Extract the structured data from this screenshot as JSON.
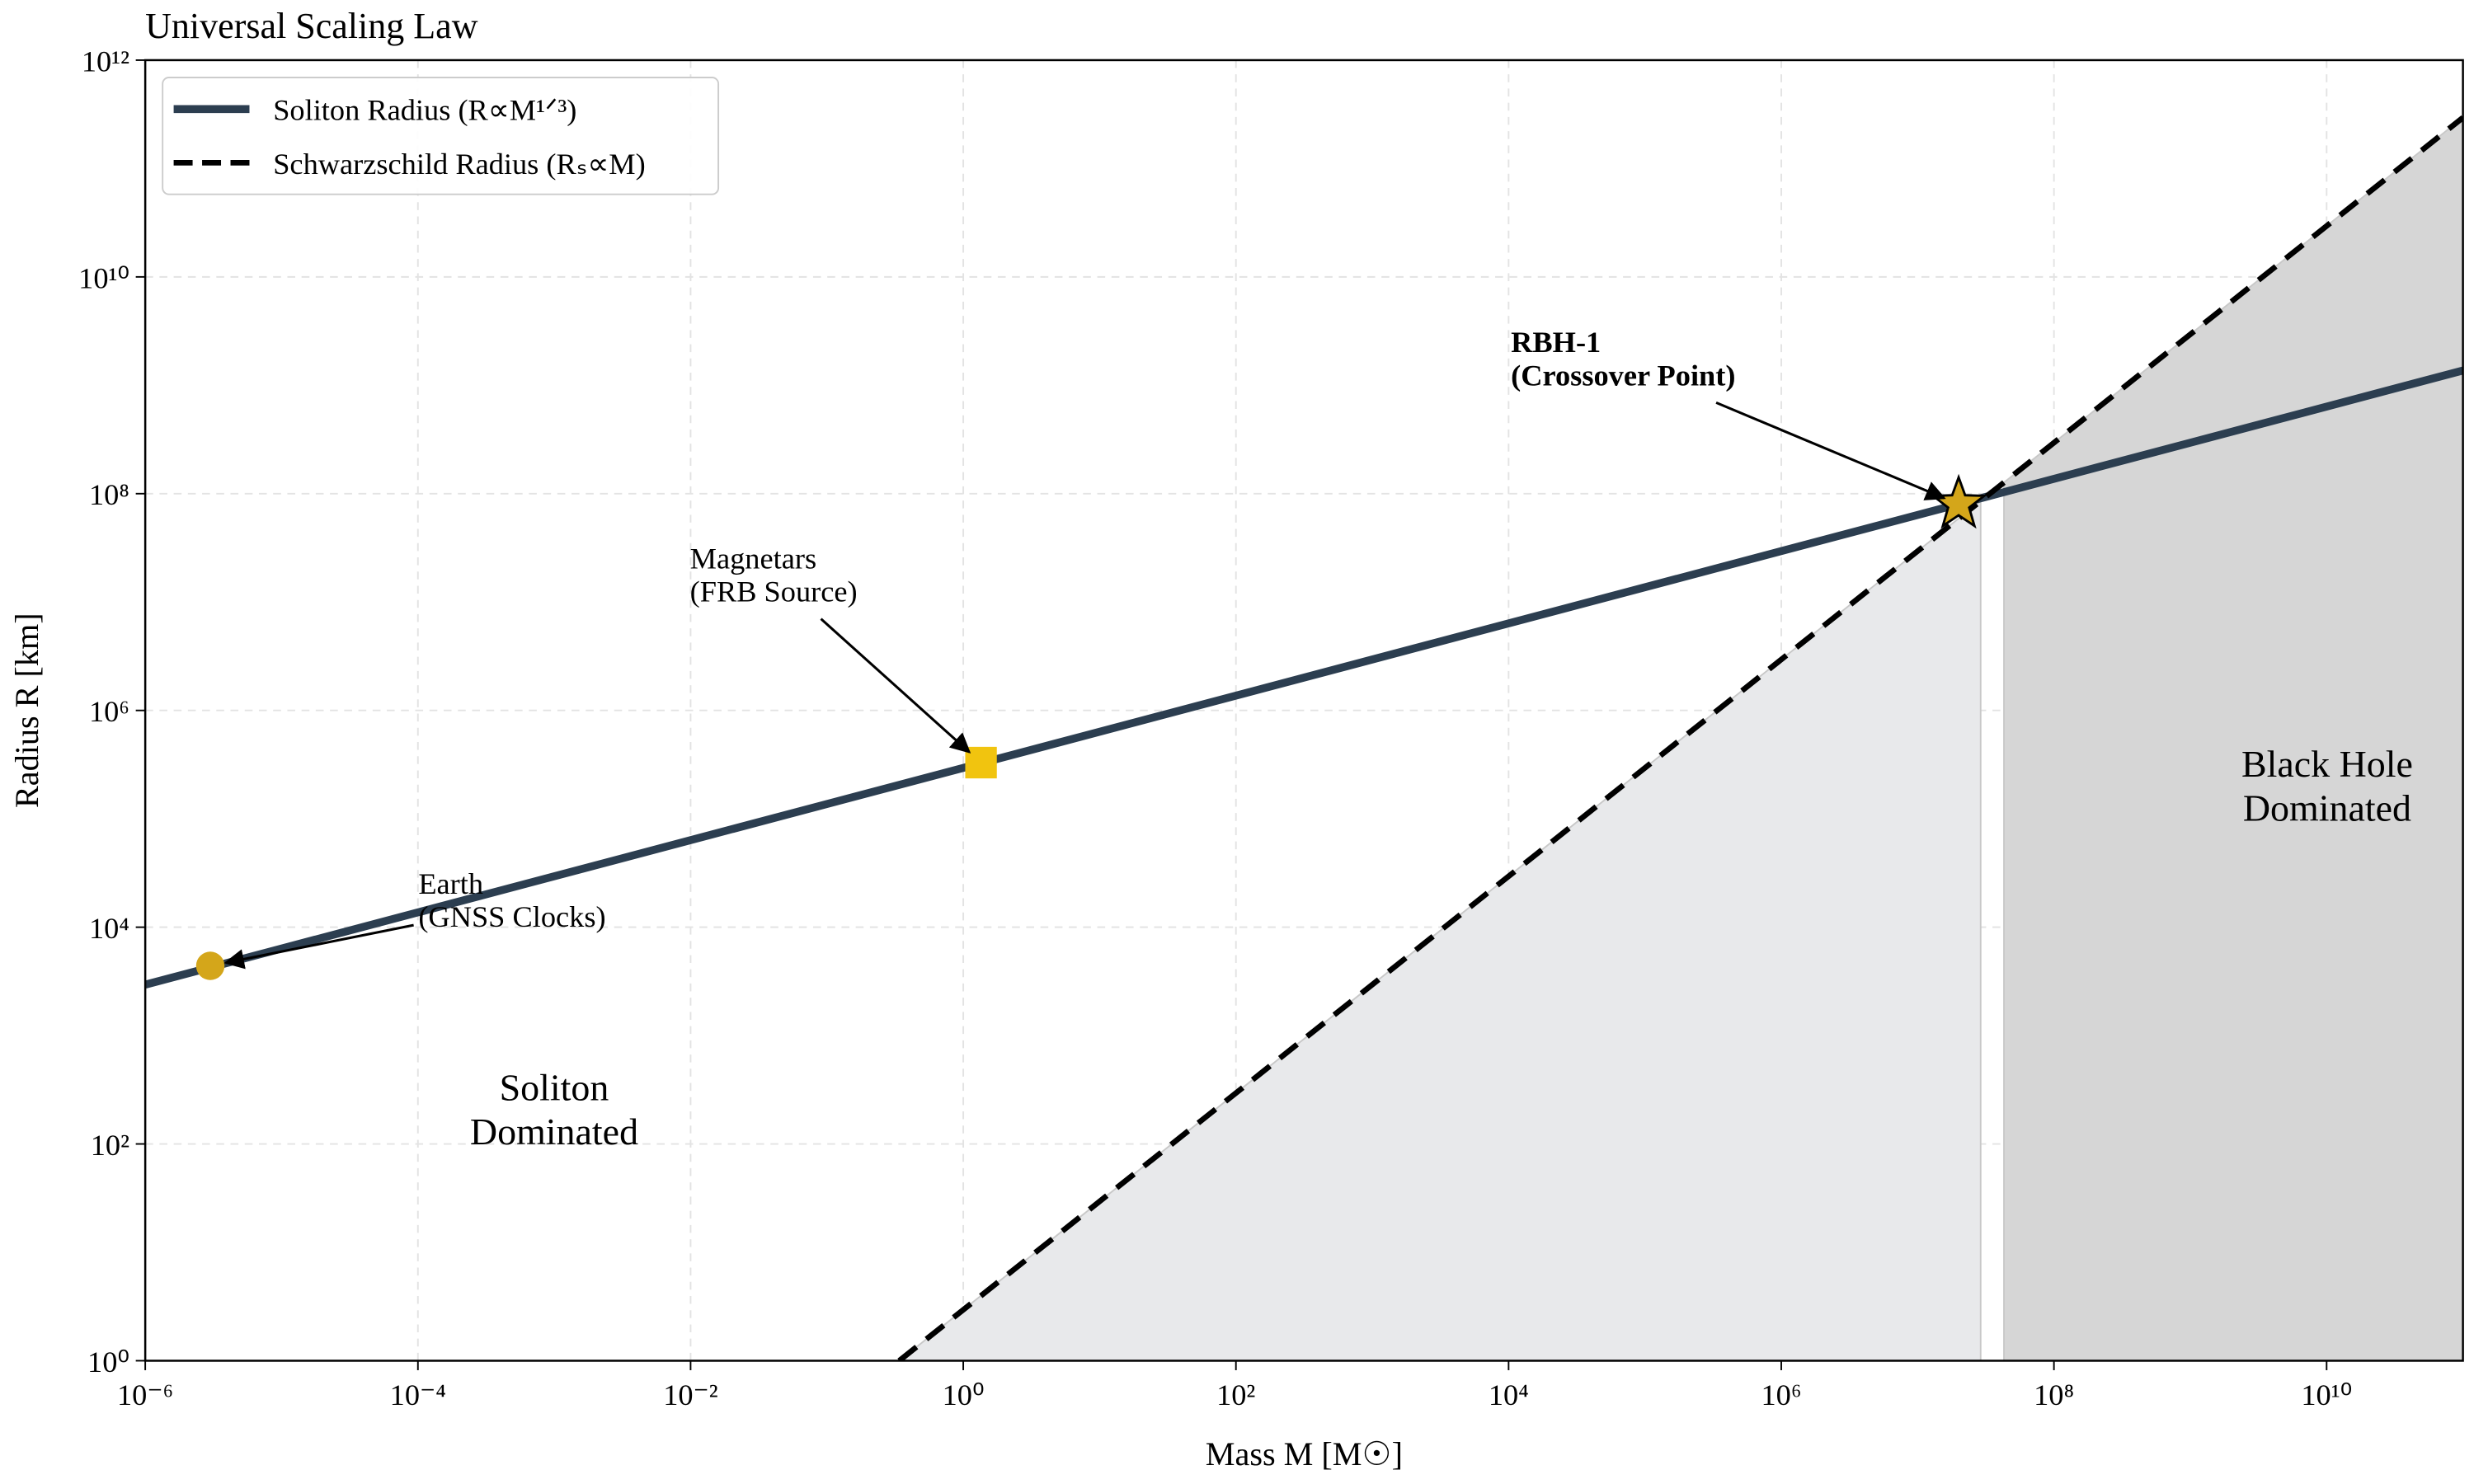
{
  "chart_data": {
    "type": "line",
    "title": "Universal Scaling Law",
    "x_label": "Mass M [M☉]",
    "y_label": "Radius R [km]",
    "log_x": true,
    "log_y": true,
    "grid": true,
    "legend": "upper left",
    "xlim": [
      1e-06,
      100000000000
    ],
    "ylim": [
      1,
      1000000000000
    ],
    "xticks": [
      {
        "value": 1e-06,
        "label": "10⁻⁶"
      },
      {
        "value": 0.0001,
        "label": "10⁻⁴"
      },
      {
        "value": 0.01,
        "label": "10⁻²"
      },
      {
        "value": 1,
        "label": "10⁰"
      },
      {
        "value": 100,
        "label": "10²"
      },
      {
        "value": 10000,
        "label": "10⁴"
      },
      {
        "value": 1000000,
        "label": "10⁶"
      },
      {
        "value": 100000000,
        "label": "10⁸"
      },
      {
        "value": 10000000000,
        "label": "10¹⁰"
      }
    ],
    "yticks": [
      {
        "value": 1,
        "label": "10⁰"
      },
      {
        "value": 100,
        "label": "10²"
      },
      {
        "value": 10000,
        "label": "10⁴"
      },
      {
        "value": 1000000,
        "label": "10⁶"
      },
      {
        "value": 100000000,
        "label": "10⁸"
      },
      {
        "value": 10000000000,
        "label": "10¹⁰"
      },
      {
        "value": 1000000000000,
        "label": "10¹²"
      }
    ],
    "series": [
      {
        "name": "Soliton Radius (R∝M¹ᐟ³)",
        "color": "#2c3e50",
        "dash": false,
        "x": [
          1e-06,
          100000000000
        ],
        "values": [
          2950,
          1370000000
        ]
      },
      {
        "name": "Schwarzschild Radius (Rₛ∝M)",
        "color": "#000000",
        "dash": true,
        "x": [
          0.339,
          100000000000
        ],
        "values": [
          1,
          295000000000
        ]
      }
    ],
    "regions": [
      {
        "x": [
          0.339,
          29000000
        ],
        "color": "#e8e9eb"
      },
      {
        "x": [
          43000000,
          100000000000
        ],
        "color": "#d6d6d6"
      }
    ],
    "points": [
      {
        "x": 3e-06,
        "y": 4400,
        "marker": "circle",
        "color": "#d4a61a",
        "label": [
          "Earth",
          "(GNSS Clocks)"
        ]
      },
      {
        "x": 1.35,
        "y": 330000,
        "marker": "square",
        "color": "#f1c40f",
        "label": [
          "Magnetars",
          "(FRB Source)"
        ]
      },
      {
        "x": 20000000,
        "y": 80000000,
        "marker": "star",
        "color": "#d4a61a",
        "label": [
          "RBH-1",
          "(Crossover Point)"
        ]
      }
    ],
    "region_labels": [
      {
        "lines": [
          "Soliton",
          "Dominated"
        ],
        "color": "#2c3e50"
      },
      {
        "lines": [
          "Black Hole",
          "Dominated"
        ],
        "color": "#222222"
      }
    ]
  }
}
